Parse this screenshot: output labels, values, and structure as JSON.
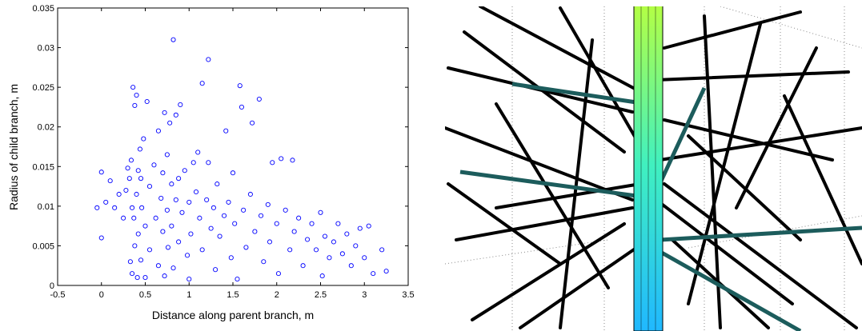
{
  "chart_data": {
    "type": "scatter",
    "xlabel": "Distance along parent branch, m",
    "ylabel": "Radius of child branch, m",
    "color": "#0000ff",
    "xlim": [
      -0.5,
      3.5
    ],
    "xticks": [
      -0.5,
      0,
      0.5,
      1,
      1.5,
      2,
      2.5,
      3,
      3.5
    ],
    "ylim": [
      0,
      0.035
    ],
    "yticks": [
      0,
      0.005,
      0.01,
      0.015,
      0.02,
      0.025,
      0.03,
      0.035
    ],
    "x": [
      -0.05,
      0,
      0,
      0.05,
      0.1,
      0.15,
      0.2,
      0.25,
      0.28,
      0.3,
      0.32,
      0.33,
      0.34,
      0.35,
      0.35,
      0.36,
      0.37,
      0.38,
      0.38,
      0.4,
      0.4,
      0.41,
      0.42,
      0.42,
      0.44,
      0.45,
      0.45,
      0.46,
      0.48,
      0.5,
      0.5,
      0.52,
      0.55,
      0.55,
      0.6,
      0.62,
      0.65,
      0.65,
      0.68,
      0.7,
      0.7,
      0.72,
      0.72,
      0.75,
      0.75,
      0.76,
      0.78,
      0.8,
      0.8,
      0.82,
      0.82,
      0.85,
      0.85,
      0.88,
      0.88,
      0.9,
      0.92,
      0.95,
      0.98,
      1.0,
      1.0,
      1.02,
      1.05,
      1.08,
      1.1,
      1.12,
      1.15,
      1.15,
      1.2,
      1.22,
      1.22,
      1.25,
      1.28,
      1.3,
      1.32,
      1.35,
      1.4,
      1.42,
      1.45,
      1.48,
      1.5,
      1.52,
      1.55,
      1.58,
      1.6,
      1.62,
      1.65,
      1.7,
      1.72,
      1.75,
      1.8,
      1.82,
      1.85,
      1.9,
      1.92,
      1.95,
      2.0,
      2.02,
      2.05,
      2.1,
      2.15,
      2.18,
      2.2,
      2.25,
      2.3,
      2.35,
      2.4,
      2.45,
      2.5,
      2.52,
      2.55,
      2.6,
      2.65,
      2.7,
      2.75,
      2.8,
      2.85,
      2.9,
      2.95,
      3.0,
      3.05,
      3.1,
      3.2,
      3.25
    ],
    "values": [
      0.0098,
      0.0143,
      0.006,
      0.0105,
      0.0132,
      0.0098,
      0.0115,
      0.0085,
      0.012,
      0.0148,
      0.0135,
      0.003,
      0.0158,
      0.0098,
      0.0015,
      0.025,
      0.0085,
      0.0227,
      0.005,
      0.024,
      0.0115,
      0.001,
      0.0145,
      0.0065,
      0.0172,
      0.0135,
      0.0032,
      0.0098,
      0.0185,
      0.0075,
      0.001,
      0.0232,
      0.0125,
      0.0045,
      0.0152,
      0.0085,
      0.0195,
      0.0025,
      0.011,
      0.0142,
      0.0068,
      0.0218,
      0.0012,
      0.0165,
      0.0095,
      0.0048,
      0.0205,
      0.0128,
      0.0075,
      0.031,
      0.0022,
      0.0215,
      0.0108,
      0.0135,
      0.0055,
      0.0228,
      0.0092,
      0.0145,
      0.0038,
      0.0105,
      0.0008,
      0.0065,
      0.0155,
      0.0118,
      0.0168,
      0.0085,
      0.0255,
      0.0045,
      0.0108,
      0.0285,
      0.0155,
      0.0072,
      0.0098,
      0.002,
      0.0128,
      0.0062,
      0.0088,
      0.0195,
      0.0105,
      0.0035,
      0.0142,
      0.0078,
      0.0008,
      0.0252,
      0.0225,
      0.0095,
      0.0048,
      0.0115,
      0.0205,
      0.0068,
      0.0235,
      0.0088,
      0.003,
      0.0102,
      0.0055,
      0.0155,
      0.0078,
      0.0015,
      0.016,
      0.0095,
      0.0045,
      0.0158,
      0.0068,
      0.0085,
      0.0025,
      0.0058,
      0.0078,
      0.0045,
      0.0092,
      0.0012,
      0.0062,
      0.0035,
      0.0055,
      0.0078,
      0.004,
      0.0065,
      0.0025,
      0.005,
      0.0072,
      0.0035,
      0.0075,
      0.0015,
      0.0045,
      0.0018
    ]
  }
}
